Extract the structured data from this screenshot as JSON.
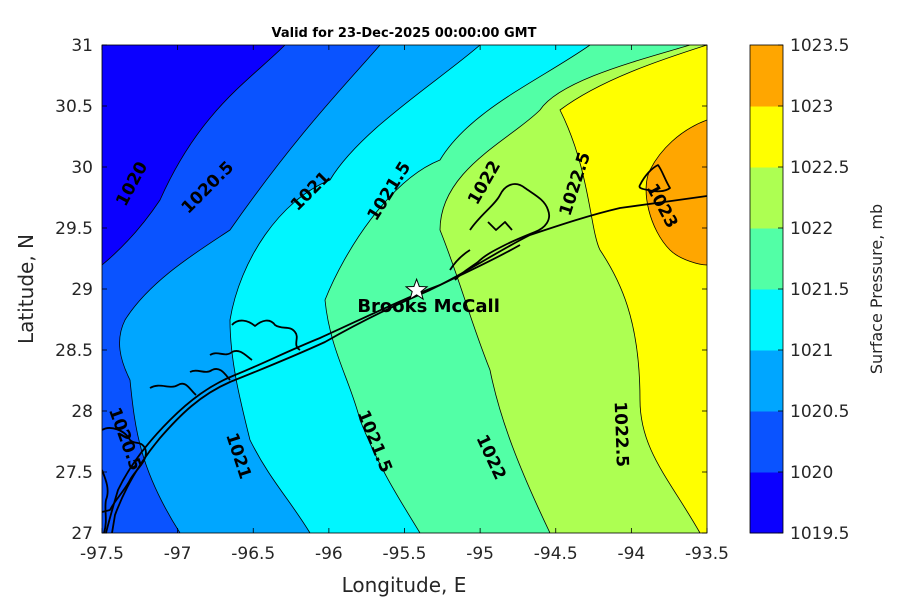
{
  "title": "Valid for 23-Dec-2025 00:00:00 GMT",
  "map": {
    "xlabel": "Longitude, E",
    "ylabel": "Latitude, N",
    "xlim": [
      -97.5,
      -93.5
    ],
    "ylim": [
      27,
      31
    ],
    "xticks": [
      "-97.5",
      "-97",
      "-96.5",
      "-96",
      "-95.5",
      "-95",
      "-94.5",
      "-94",
      "-93.5"
    ],
    "yticks": [
      "27",
      "27.5",
      "28",
      "28.5",
      "29",
      "29.5",
      "30",
      "30.5",
      "31"
    ],
    "marker": {
      "name": "Brooks McCall",
      "lon": -95.42,
      "lat": 28.99
    },
    "contour_labels": [
      {
        "text": "1020",
        "lon": -97.3,
        "lat": 29.86,
        "angle": -62
      },
      {
        "text": "1020.5",
        "lon": -96.8,
        "lat": 29.83,
        "angle": -45
      },
      {
        "text": "1021",
        "lon": -96.12,
        "lat": 29.8,
        "angle": -45
      },
      {
        "text": "1021.5",
        "lon": -95.6,
        "lat": 29.8,
        "angle": -58
      },
      {
        "text": "1022",
        "lon": -94.97,
        "lat": 29.87,
        "angle": -60
      },
      {
        "text": "1022.5",
        "lon": -94.37,
        "lat": 29.86,
        "angle": -72
      },
      {
        "text": "1023",
        "lon": -93.8,
        "lat": 29.68,
        "angle": 62
      },
      {
        "text": "1020.5",
        "lon": -97.35,
        "lat": 27.77,
        "angle": 70
      },
      {
        "text": "1021",
        "lon": -96.6,
        "lat": 27.63,
        "angle": 72
      },
      {
        "text": "1021.5",
        "lon": -95.7,
        "lat": 27.75,
        "angle": 68
      },
      {
        "text": "1022",
        "lon": -94.93,
        "lat": 27.62,
        "angle": 65
      },
      {
        "text": "1022.5",
        "lon": -94.07,
        "lat": 27.81,
        "angle": 88
      }
    ]
  },
  "colorbar": {
    "label": "Surface Pressure, mb",
    "ticks": [
      "1019.5",
      "1020",
      "1020.5",
      "1021",
      "1021.5",
      "1022",
      "1022.5",
      "1023",
      "1023.5"
    ],
    "levels": [
      1019.5,
      1020,
      1020.5,
      1021,
      1021.5,
      1022,
      1022.5,
      1023,
      1023.5
    ],
    "colors": [
      "#0b00ff",
      "#0a53ff",
      "#00a6ff",
      "#00f6ff",
      "#52ffa6",
      "#adff52",
      "#ffff00",
      "#ffa600",
      "#ff5500"
    ]
  }
}
